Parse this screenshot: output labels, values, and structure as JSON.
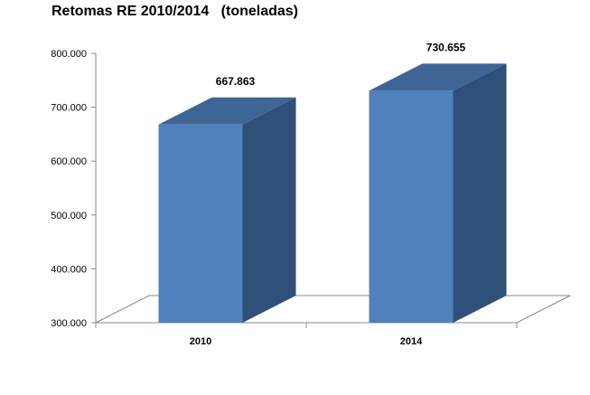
{
  "chart_data": {
    "type": "bar",
    "title": "Retomas RE 2010/2014   (toneladas)",
    "categories": [
      "2010",
      "2014"
    ],
    "values": [
      667863,
      730655
    ],
    "value_labels": [
      "667.863",
      "730.655"
    ],
    "ylim": [
      300000,
      800000
    ],
    "yticks": [
      300000,
      400000,
      500000,
      600000,
      700000,
      800000
    ],
    "ytick_labels": [
      "300.000",
      "400.000",
      "500.000",
      "600.000",
      "700.000",
      "800.000"
    ],
    "grid": false,
    "style": "3d-column",
    "colors": {
      "front": "#4F81BD",
      "top": "#3E6595",
      "side": "#2F5079",
      "floor": "#888888"
    }
  }
}
